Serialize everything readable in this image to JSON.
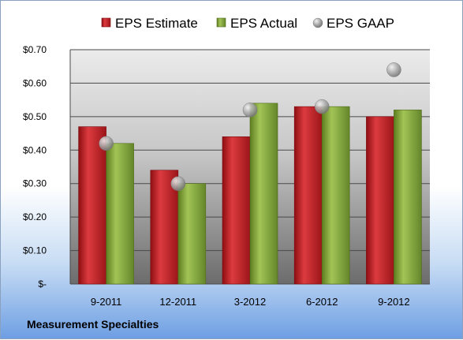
{
  "company": "Measurement Specialties",
  "chart_data": {
    "type": "bar",
    "categories": [
      "9-2011",
      "12-2011",
      "3-2012",
      "6-2012",
      "9-2012"
    ],
    "series": [
      {
        "name": "EPS Estimate",
        "kind": "bar",
        "color": "#c0262b",
        "values": [
          0.47,
          0.34,
          0.44,
          0.53,
          0.5
        ]
      },
      {
        "name": "EPS Actual",
        "kind": "bar",
        "color": "#8bb03c",
        "values": [
          0.42,
          0.3,
          0.54,
          0.53,
          0.52
        ]
      },
      {
        "name": "EPS GAAP",
        "kind": "marker",
        "color": "#a0a0a0",
        "values": [
          0.42,
          0.3,
          0.52,
          0.53,
          0.64
        ]
      }
    ],
    "yticks": [
      {
        "value": 0.7,
        "label": "$0.70"
      },
      {
        "value": 0.6,
        "label": "$0.60"
      },
      {
        "value": 0.5,
        "label": "$0.50"
      },
      {
        "value": 0.4,
        "label": "$0.40"
      },
      {
        "value": 0.3,
        "label": "$0.30"
      },
      {
        "value": 0.2,
        "label": "$0.20"
      },
      {
        "value": 0.1,
        "label": "$0.10"
      },
      {
        "value": 0.0,
        "label": "$-"
      }
    ],
    "ylim": [
      0,
      0.7
    ],
    "grid": true,
    "legend": "top"
  }
}
